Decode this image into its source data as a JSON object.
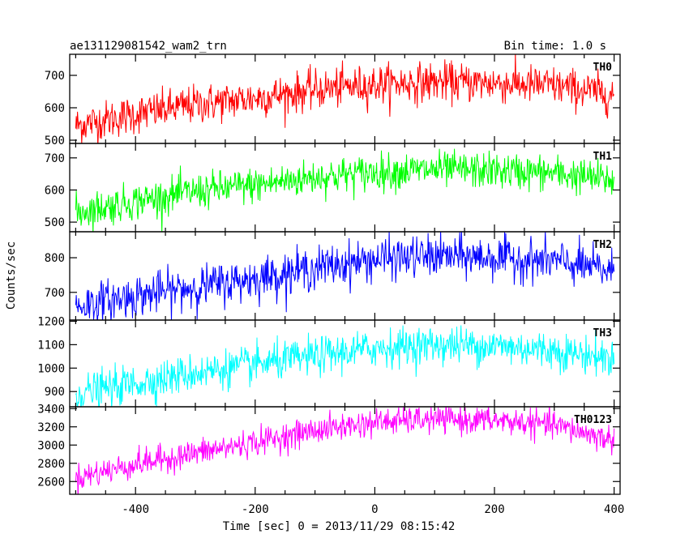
{
  "header": {
    "left_title": "ae131129081542_wam2_trn",
    "right_title": "Bin time: 1.0 s"
  },
  "chart_data": {
    "type": "line",
    "xlabel": "Time [sec] 0 = 2013/11/29 08:15:42",
    "ylabel": "Counts/sec",
    "xlim": [
      -510,
      410
    ],
    "xticks": [
      -400,
      -200,
      0,
      200,
      400
    ],
    "bin_time_s": 1.0,
    "grid": false,
    "panels": [
      {
        "name": "TH0",
        "color": "#ff0000",
        "ylim": [
          490,
          765
        ],
        "yticks": [
          500,
          600,
          700
        ],
        "trend_x": [
          -500,
          -400,
          -300,
          -200,
          -100,
          0,
          100,
          200,
          300,
          400
        ],
        "trend_y": [
          545,
          580,
          610,
          630,
          655,
          672,
          680,
          676,
          668,
          640
        ],
        "noise": 30
      },
      {
        "name": "TH1",
        "color": "#00ff00",
        "ylim": [
          470,
          745
        ],
        "yticks": [
          500,
          600,
          700
        ],
        "trend_x": [
          -500,
          -400,
          -300,
          -200,
          -100,
          0,
          100,
          200,
          300,
          400
        ],
        "trend_y": [
          530,
          565,
          595,
          615,
          640,
          655,
          663,
          660,
          652,
          630
        ],
        "noise": 28
      },
      {
        "name": "TH2",
        "color": "#0000ff",
        "ylim": [
          620,
          875
        ],
        "yticks": [
          700,
          800
        ],
        "trend_x": [
          -500,
          -400,
          -300,
          -200,
          -100,
          0,
          100,
          200,
          300,
          400
        ],
        "trend_y": [
          660,
          690,
          715,
          740,
          770,
          795,
          805,
          800,
          790,
          760
        ],
        "noise": 30
      },
      {
        "name": "TH3",
        "color": "#00ffff",
        "ylim": [
          835,
          1205
        ],
        "yticks": [
          900,
          1000,
          1100,
          1200
        ],
        "trend_x": [
          -500,
          -400,
          -300,
          -200,
          -100,
          0,
          100,
          200,
          300,
          400
        ],
        "trend_y": [
          890,
          935,
          980,
          1015,
          1050,
          1085,
          1100,
          1095,
          1075,
          1040
        ],
        "noise": 40
      },
      {
        "name": "TH0123",
        "color": "#ff00ff",
        "ylim": [
          2460,
          3420
        ],
        "yticks": [
          2600,
          2800,
          3000,
          3200,
          3400
        ],
        "trend_x": [
          -500,
          -400,
          -300,
          -200,
          -100,
          0,
          100,
          200,
          300,
          400
        ],
        "trend_y": [
          2640,
          2790,
          2910,
          3030,
          3160,
          3250,
          3280,
          3270,
          3220,
          3050
        ],
        "noise": 75
      }
    ]
  }
}
